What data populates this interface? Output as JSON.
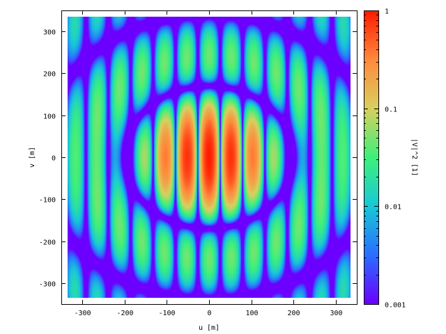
{
  "chart_data": {
    "type": "heatmap",
    "title": "",
    "xlabel": "u [m]",
    "ylabel": "v [m]",
    "colorbar_label": "|V|^2 [1]",
    "colorbar_scale": "log",
    "colorbar_range": [
      0.001,
      1
    ],
    "colorbar_ticks": [
      "1",
      "0.1",
      "0.01",
      "0.001"
    ],
    "colorbar_tick_values": [
      1,
      0.1,
      0.01,
      0.001
    ],
    "colormap": [
      "#6b00ff",
      "#2a6fff",
      "#18c8d8",
      "#3ef07a",
      "#d8d060",
      "#ff8a3c",
      "#ff1a00"
    ],
    "xlim": [
      -350,
      350
    ],
    "ylim": [
      -350,
      350
    ],
    "data_extent": [
      -335,
      335
    ],
    "x_ticks": [
      -300,
      -200,
      -100,
      0,
      100,
      200,
      300
    ],
    "x_tick_labels": [
      "-300",
      "-200",
      "-100",
      "0",
      "100",
      "200",
      "300"
    ],
    "y_ticks": [
      -300,
      -200,
      -100,
      0,
      100,
      200,
      300
    ],
    "y_tick_labels": [
      "-300",
      "-200",
      "-100",
      "0",
      "100",
      "200",
      "300"
    ],
    "grid": false,
    "pattern": {
      "description_model": "sinc^2(u/a) * jinc^2(v/b) style fringe pattern",
      "fringe_period_u": 53,
      "envelope_width_u": 200,
      "envelope_width_v": 170
    }
  }
}
